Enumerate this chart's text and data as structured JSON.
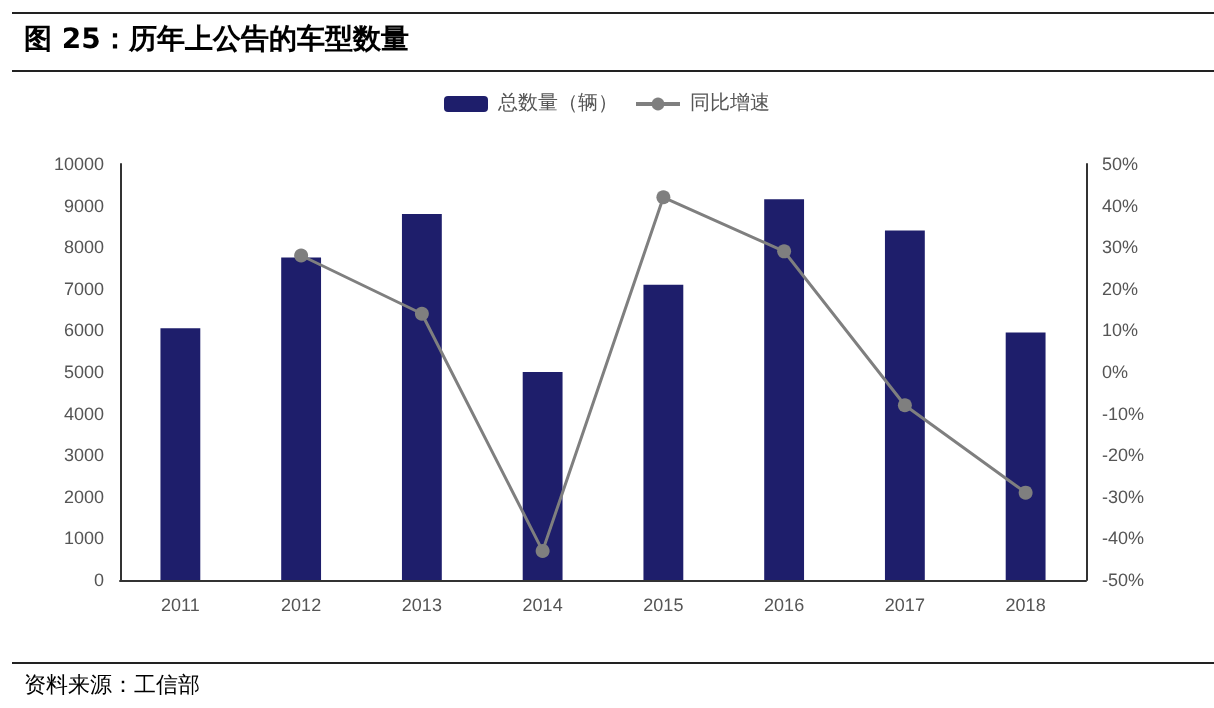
{
  "chart_data": {
    "type": "bar",
    "title": "图 25：历年上公告的车型数量",
    "categories": [
      "2011",
      "2012",
      "2013",
      "2014",
      "2015",
      "2016",
      "2017",
      "2018"
    ],
    "series": [
      {
        "name": "总数量（辆）",
        "color": "#1e1e6b",
        "values": [
          6050,
          7750,
          8800,
          5000,
          7100,
          9150,
          8400,
          5950
        ]
      },
      {
        "name": "同比增速",
        "type": "line",
        "axis": "y2",
        "color": "#7f7f7f",
        "marker": "circle",
        "values": [
          null,
          28,
          14,
          -43,
          42,
          29,
          -8,
          -29
        ]
      }
    ],
    "ylim": [
      0,
      10000
    ],
    "yticks": [
      0,
      1000,
      2000,
      3000,
      4000,
      5000,
      6000,
      7000,
      8000,
      9000,
      10000
    ],
    "y2lim": [
      -50,
      50
    ],
    "y2ticks": [
      {
        "value": -50,
        "label": "-50%"
      },
      {
        "value": -40,
        "label": "-40%"
      },
      {
        "value": -30,
        "label": "-30%"
      },
      {
        "value": -20,
        "label": "-20%"
      },
      {
        "value": -10,
        "label": "-10%"
      },
      {
        "value": 0,
        "label": "0%"
      },
      {
        "value": 10,
        "label": "10%"
      },
      {
        "value": 20,
        "label": "20%"
      },
      {
        "value": 30,
        "label": "30%"
      },
      {
        "value": 40,
        "label": "40%"
      },
      {
        "value": 50,
        "label": "50%"
      }
    ],
    "grid": false,
    "legend": "top",
    "annotations": [
      "资料来源：工信部"
    ]
  }
}
